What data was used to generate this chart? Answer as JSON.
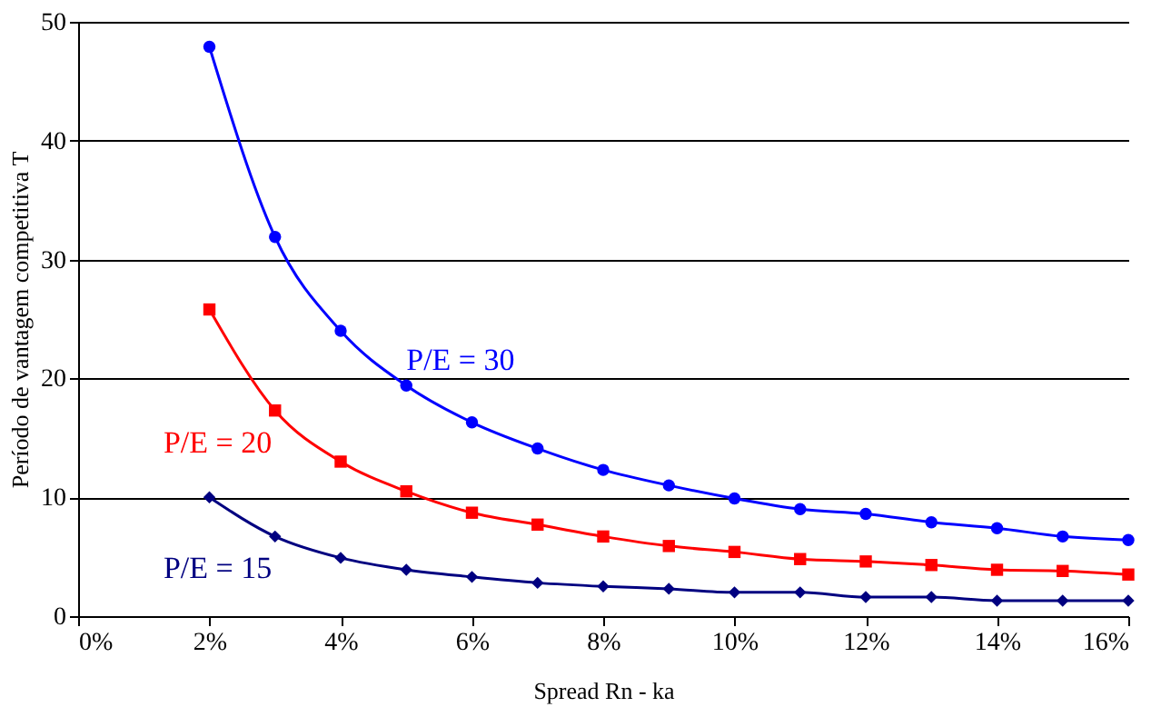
{
  "chart_data": {
    "type": "line",
    "xlabel": "Spread Rn - ka",
    "ylabel": "Período de vantagem competitiva T",
    "x": [
      2,
      3,
      4,
      5,
      6,
      7,
      8,
      9,
      10,
      11,
      12,
      13,
      14,
      15,
      16
    ],
    "series": [
      {
        "name": "P/E = 30",
        "color": "#0000ff",
        "marker": "circle",
        "values": [
          47.9,
          31.9,
          24.0,
          19.4,
          16.3,
          14.1,
          12.3,
          11.0,
          9.9,
          9.0,
          8.6,
          7.9,
          7.4,
          6.7,
          6.4
        ]
      },
      {
        "name": "P/E = 20",
        "color": "#ff0000",
        "marker": "square",
        "values": [
          25.8,
          17.3,
          13.0,
          10.5,
          8.7,
          7.7,
          6.7,
          5.9,
          5.4,
          4.8,
          4.6,
          4.3,
          3.9,
          3.8,
          3.5
        ]
      },
      {
        "name": "P/E = 15",
        "color": "#000080",
        "marker": "diamond",
        "values": [
          10.0,
          6.7,
          4.9,
          3.9,
          3.3,
          2.8,
          2.5,
          2.3,
          2.0,
          2.0,
          1.6,
          1.6,
          1.3,
          1.3,
          1.3
        ]
      }
    ],
    "xlim": [
      0,
      16
    ],
    "xticks": [
      {
        "value": 0,
        "label": "0%"
      },
      {
        "value": 2,
        "label": "2%"
      },
      {
        "value": 4,
        "label": "4%"
      },
      {
        "value": 6,
        "label": "6%"
      },
      {
        "value": 8,
        "label": "8%"
      },
      {
        "value": 10,
        "label": "10%"
      },
      {
        "value": 12,
        "label": "12%"
      },
      {
        "value": 14,
        "label": "14%"
      },
      {
        "value": 16,
        "label": "16%"
      }
    ],
    "ylim": [
      0,
      50
    ],
    "yticks": [
      0,
      10,
      20,
      30,
      40,
      50
    ],
    "grid": "y",
    "line_style": "solid"
  }
}
